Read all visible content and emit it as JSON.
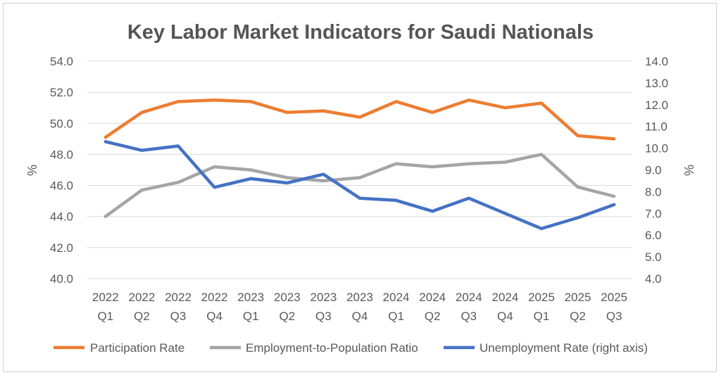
{
  "chart_data": {
    "type": "line",
    "title": "Key Labor Market Indicators for Saudi Nationals",
    "ylabel": "%",
    "y2label": "%",
    "ylim": [
      40,
      54
    ],
    "y2lim": [
      4,
      14
    ],
    "yticks": [
      "54.0",
      "52.0",
      "50.0",
      "48.0",
      "46.0",
      "44.0",
      "42.0",
      "40.0"
    ],
    "y2ticks": [
      "14.0",
      "13.0",
      "12.0",
      "11.0",
      "10.0",
      "9.0",
      "8.0",
      "7.0",
      "6.0",
      "5.0",
      "4.0"
    ],
    "categories": [
      {
        "year": "2022",
        "q": "Q1"
      },
      {
        "year": "2022",
        "q": "Q2"
      },
      {
        "year": "2022",
        "q": "Q3"
      },
      {
        "year": "2022",
        "q": "Q4"
      },
      {
        "year": "2023",
        "q": "Q1"
      },
      {
        "year": "2023",
        "q": "Q2"
      },
      {
        "year": "2023",
        "q": "Q3"
      },
      {
        "year": "2023",
        "q": "Q4"
      },
      {
        "year": "2024",
        "q": "Q1"
      },
      {
        "year": "2024",
        "q": "Q2"
      },
      {
        "year": "2024",
        "q": "Q3"
      },
      {
        "year": "2024",
        "q": "Q4"
      },
      {
        "year": "2025",
        "q": "Q1"
      },
      {
        "year": "2025",
        "q": "Q2"
      },
      {
        "year": "2025",
        "q": "Q3"
      }
    ],
    "series": [
      {
        "name": "Participation Rate",
        "axis": "left",
        "color": "#ed7d31",
        "values": [
          49.1,
          50.7,
          51.4,
          51.5,
          51.4,
          50.7,
          50.8,
          50.4,
          51.4,
          50.7,
          51.5,
          51.0,
          51.3,
          49.2,
          49.0
        ]
      },
      {
        "name": "Employment-to-Population Ratio",
        "axis": "left",
        "color": "#a5a5a5",
        "values": [
          44.0,
          45.7,
          46.2,
          47.2,
          47.0,
          46.5,
          46.3,
          46.5,
          47.4,
          47.2,
          47.4,
          47.5,
          48.0,
          45.9,
          45.3
        ]
      },
      {
        "name": "Unemployment Rate (right axis)",
        "axis": "right",
        "color": "#4472c4",
        "values": [
          10.3,
          9.9,
          10.1,
          8.2,
          8.6,
          8.4,
          8.8,
          7.7,
          7.6,
          7.1,
          7.7,
          7.0,
          6.3,
          6.8,
          7.4
        ]
      }
    ]
  }
}
